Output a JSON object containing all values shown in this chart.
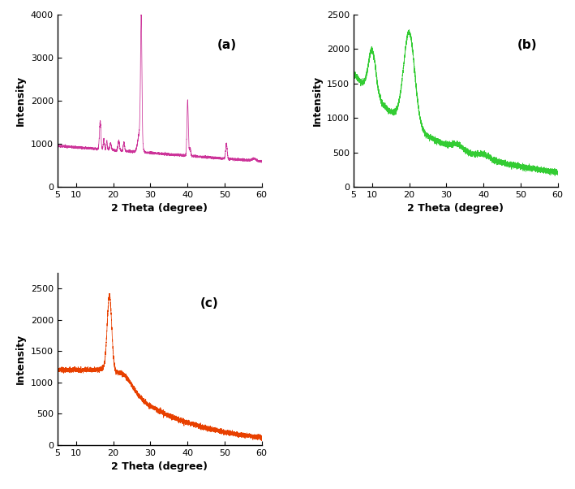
{
  "xlim": [
    5,
    60
  ],
  "xlabel": "2 Theta (degree)",
  "ylabel": "Intensity",
  "color_a": "#CC3399",
  "color_b": "#33CC33",
  "color_c": "#E84000",
  "label_a": "(a)",
  "label_b": "(b)",
  "label_c": "(c)",
  "ylim_a": [
    0,
    4000
  ],
  "ylim_b": [
    0,
    2500
  ],
  "ylim_c": [
    0,
    2750
  ],
  "yticks_a": [
    0,
    1000,
    2000,
    3000,
    4000
  ],
  "yticks_b": [
    0,
    500,
    1000,
    1500,
    2000,
    2500
  ],
  "yticks_c": [
    0,
    500,
    1000,
    1500,
    2000,
    2500
  ],
  "xticks": [
    5,
    10,
    20,
    30,
    40,
    50,
    60
  ],
  "seed_a": 42,
  "seed_b": 123,
  "seed_c": 456
}
